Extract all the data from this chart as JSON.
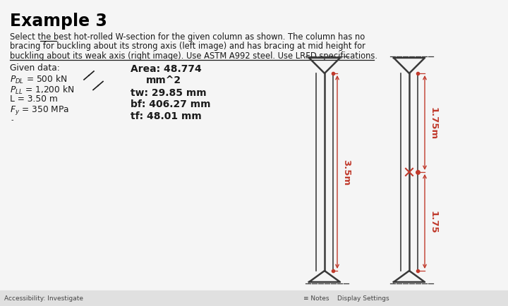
{
  "title": "Example 3",
  "desc1": "Select the best hot-rolled W-section for the given column as shown. The column has no",
  "desc2": "bracing for buckling about its strong axis (left image) and has bracing at mid height for",
  "desc3": "buckling about its weak axis (right image). Use ASTM A992 steel. Use LRFD specifications.",
  "given_label": "Given data:",
  "pdl_label": "P",
  "pdl_sub": "DL",
  "pdl_val": " = 500 kN",
  "pll_label": "P",
  "pll_sub": "LL",
  "pll_val": " = 1,200 kN",
  "l_label": "L = 3.50 m",
  "fy_label": "F",
  "fy_sub": "y",
  "fy_val": " = 350 MPa",
  "area_label": "Area: 48.774",
  "area_unit": "mm^2",
  "tw_label": "tw: 29.85 mm",
  "bf_label": "bf: 406.27 mm",
  "tf_label": "tf: 48.01 mm",
  "dim_35": "3.5m",
  "dim_175a": "1.75m",
  "dim_175b": "1.75",
  "status_bar_left": "Accessibility: Investigate",
  "status_bar_right": "≡ Notes    Display Settings",
  "bg_color": "#f5f5f5",
  "col_color": "#3a3a3a",
  "dim_color": "#c0392b",
  "title_color": "#000000",
  "text_color": "#1a1a1a",
  "statusbar_bg": "#e0e0e0",
  "statusbar_text": "#444444"
}
